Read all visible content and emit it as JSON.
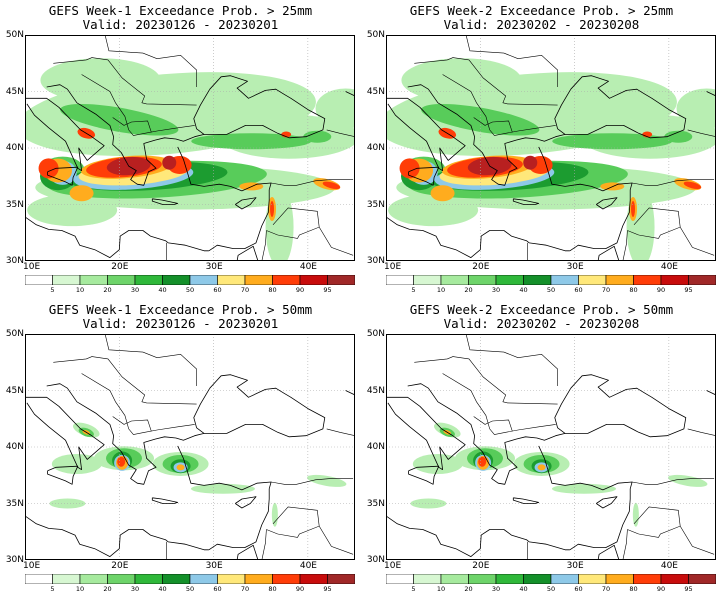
{
  "panels": [
    {
      "title": "GEFS Week-1 Exceedance Prob. > 25mm",
      "valid": "Valid: 20230126 - 20230201"
    },
    {
      "title": "GEFS Week-2 Exceedance Prob. > 25mm",
      "valid": "Valid: 20230202 - 20230208"
    },
    {
      "title": "GEFS Week-1 Exceedance Prob. > 50mm",
      "valid": "Valid: 20230126 - 20230201"
    },
    {
      "title": "GEFS Week-2 Exceedance Prob. > 50mm",
      "valid": "Valid: 20230202 - 20230208"
    }
  ],
  "map": {
    "lat_labels": [
      "50N",
      "45N",
      "40N",
      "35N",
      "30N"
    ],
    "lon_labels": [
      "10E",
      "20E",
      "30E",
      "40E"
    ],
    "lat_range": [
      30,
      50
    ],
    "lon_range": [
      10,
      45
    ]
  },
  "colorbar": {
    "labels": [
      "5",
      "10",
      "20",
      "30",
      "40",
      "50",
      "60",
      "70",
      "80",
      "90",
      "95"
    ],
    "colors": [
      "#ffffff",
      "#d7f7d2",
      "#a6ea9e",
      "#6ed46a",
      "#2fb83a",
      "#14902a",
      "#8ec9e8",
      "#ffe87a",
      "#ffac1e",
      "#ff3d08",
      "#c80c0c",
      "#a02828"
    ]
  },
  "colors": {
    "prob_light": "#b8eeb2",
    "prob_mid": "#58cc5a",
    "prob_dark": "#1c9c30",
    "prob_blue": "#8ec9e8",
    "prob_yellow": "#ffe87a",
    "prob_orange": "#ffac1e",
    "prob_red": "#ff3d08",
    "prob_darkred": "#b82020",
    "coast": "#000000"
  }
}
